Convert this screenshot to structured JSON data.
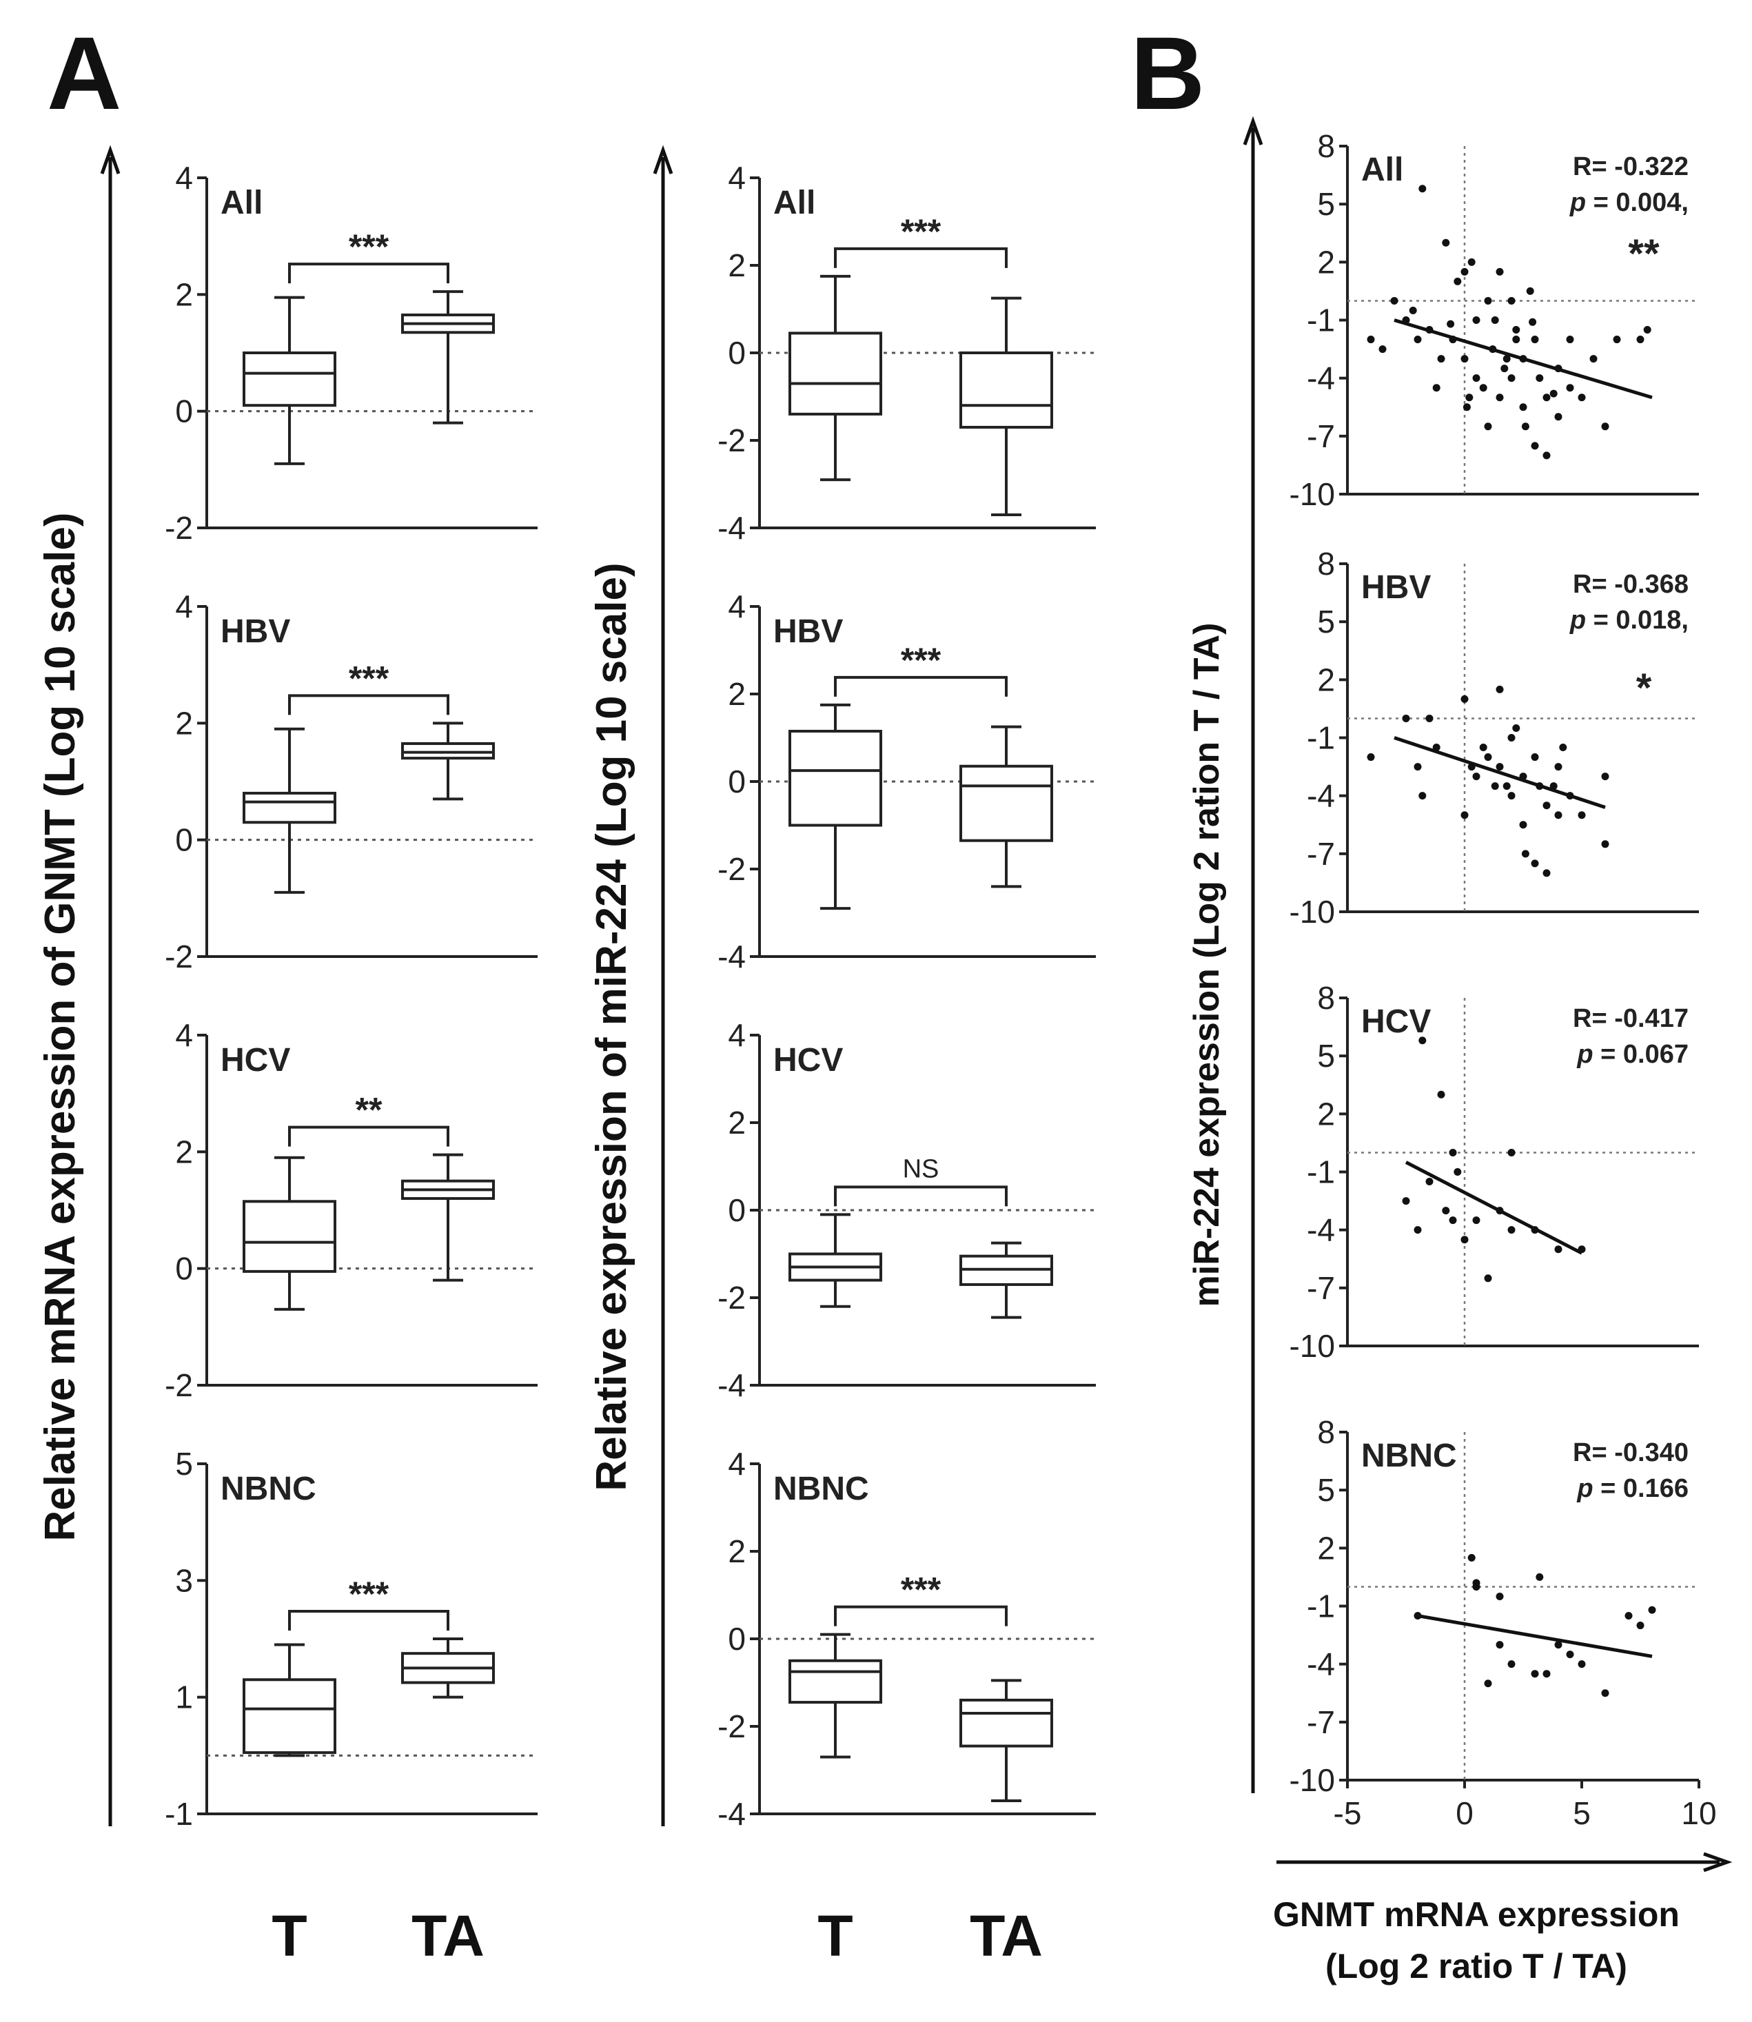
{
  "panel_a_label": "A",
  "panel_b_label": "B",
  "colors": {
    "ink": "#111111",
    "background": "#ffffff"
  },
  "chart_data": [
    {
      "id": "gnmt_box",
      "type": "box",
      "ylabel": "Relative  mRNA expression of GNMT (Log 10 scale)",
      "categories": [
        "T",
        "TA"
      ],
      "panels": [
        {
          "group": "All",
          "ylim": [
            -2,
            4
          ],
          "yticks": [
            -2,
            0,
            2,
            4
          ],
          "tick_labels": [
            "-2",
            "0",
            "2",
            "4"
          ],
          "boxes": [
            {
              "min": -0.9,
              "q1": 0.1,
              "median": 0.65,
              "q3": 1.0,
              "max": 1.95
            },
            {
              "min": -0.2,
              "q1": 1.35,
              "median": 1.5,
              "q3": 1.65,
              "max": 2.05
            }
          ],
          "significance": "***"
        },
        {
          "group": "HBV",
          "ylim": [
            -2,
            4
          ],
          "yticks": [
            -2,
            0,
            2,
            4
          ],
          "tick_labels": [
            "-2",
            "0",
            "2",
            "4"
          ],
          "boxes": [
            {
              "min": -0.9,
              "q1": 0.3,
              "median": 0.65,
              "q3": 0.8,
              "max": 1.9
            },
            {
              "min": 0.7,
              "q1": 1.4,
              "median": 1.5,
              "q3": 1.65,
              "max": 2.0
            }
          ],
          "significance": "***"
        },
        {
          "group": "HCV",
          "ylim": [
            -2,
            4
          ],
          "yticks": [
            -2,
            0,
            2,
            4
          ],
          "tick_labels": [
            "-2",
            "0",
            "2",
            "4"
          ],
          "boxes": [
            {
              "min": -0.7,
              "q1": -0.05,
              "median": 0.45,
              "q3": 1.15,
              "max": 1.9
            },
            {
              "min": -0.2,
              "q1": 1.2,
              "median": 1.35,
              "q3": 1.5,
              "max": 1.95
            }
          ],
          "significance": "**"
        },
        {
          "group": "NBNC",
          "ylim": [
            -1,
            5
          ],
          "yticks": [
            -1,
            1,
            3,
            5
          ],
          "tick_labels": [
            "-1",
            "1",
            "3",
            "5"
          ],
          "boxes": [
            {
              "min": 0.0,
              "q1": 0.05,
              "median": 0.8,
              "q3": 1.3,
              "max": 1.9
            },
            {
              "min": 1.0,
              "q1": 1.25,
              "median": 1.5,
              "q3": 1.75,
              "max": 2.0
            }
          ],
          "significance": "***"
        }
      ]
    },
    {
      "id": "mir224_box",
      "type": "box",
      "ylabel": "Relative expression of miR-224 (Log 10 scale)",
      "categories": [
        "T",
        "TA"
      ],
      "panels": [
        {
          "group": "All",
          "ylim": [
            -4,
            4
          ],
          "yticks": [
            -4,
            -2,
            0,
            2,
            4
          ],
          "tick_labels": [
            "-4",
            "-2",
            "0",
            "2",
            "4"
          ],
          "boxes": [
            {
              "min": -2.9,
              "q1": -1.4,
              "median": -0.7,
              "q3": 0.45,
              "max": 1.75
            },
            {
              "min": -3.7,
              "q1": -1.7,
              "median": -1.2,
              "q3": 0.0,
              "max": 1.25
            }
          ],
          "significance": "***"
        },
        {
          "group": "HBV",
          "ylim": [
            -4,
            4
          ],
          "yticks": [
            -4,
            -2,
            0,
            2,
            4
          ],
          "tick_labels": [
            "-4",
            "-2",
            "0",
            "2",
            "4"
          ],
          "boxes": [
            {
              "min": -2.9,
              "q1": -1.0,
              "median": 0.25,
              "q3": 1.15,
              "max": 1.75
            },
            {
              "min": -2.4,
              "q1": -1.35,
              "median": -0.1,
              "q3": 0.35,
              "max": 1.25
            }
          ],
          "significance": "***"
        },
        {
          "group": "HCV",
          "ylim": [
            -4,
            4
          ],
          "yticks": [
            -4,
            -2,
            0,
            2,
            4
          ],
          "tick_labels": [
            "-4",
            "-2",
            "0",
            "2",
            "4"
          ],
          "boxes": [
            {
              "min": -2.2,
              "q1": -1.6,
              "median": -1.3,
              "q3": -1.0,
              "max": -0.1
            },
            {
              "min": -2.45,
              "q1": -1.7,
              "median": -1.35,
              "q3": -1.05,
              "max": -0.75
            }
          ],
          "significance": "NS"
        },
        {
          "group": "NBNC",
          "ylim": [
            -4,
            4
          ],
          "yticks": [
            -4,
            -2,
            0,
            2,
            4
          ],
          "tick_labels": [
            "-4",
            "-2",
            "0",
            "2",
            "4"
          ],
          "boxes": [
            {
              "min": -2.7,
              "q1": -1.45,
              "median": -0.75,
              "q3": -0.5,
              "max": 0.1
            },
            {
              "min": -3.7,
              "q1": -2.45,
              "median": -1.7,
              "q3": -1.4,
              "max": -0.95
            }
          ],
          "significance": "***"
        }
      ]
    },
    {
      "id": "correlation_scatter",
      "type": "scatter",
      "xlabel": "GNMT mRNA expression",
      "xlabel_line2": "(Log 2 ratio T / TA)",
      "ylabel": "miR-224 expression (Log 2 ration T / TA)",
      "xlim": [
        -5,
        10
      ],
      "xticks": [
        -5,
        0,
        5,
        10
      ],
      "x_tick_labels": [
        "-5",
        "0",
        "5",
        "10"
      ],
      "ylim": [
        -10,
        8
      ],
      "yticks": [
        -10,
        -7,
        -4,
        -1,
        2,
        5,
        8
      ],
      "y_tick_labels": [
        "-10",
        "-7",
        "-4",
        "-1",
        "2",
        "5",
        "8"
      ],
      "panels": [
        {
          "group": "All",
          "R": "R= -0.322",
          "p_label": "p",
          "p_value": "=  0.004,",
          "stars": "**",
          "fit": [
            [
              -3,
              -1.0
            ],
            [
              8,
              -5.0
            ]
          ],
          "points": [
            [
              -4,
              -2
            ],
            [
              -3.5,
              -2.5
            ],
            [
              -3,
              0
            ],
            [
              -2.5,
              -1
            ],
            [
              -2,
              -2
            ],
            [
              -1.5,
              -1.5
            ],
            [
              -1.8,
              5.8
            ],
            [
              -1,
              -3
            ],
            [
              -0.8,
              3
            ],
            [
              -0.5,
              -2
            ],
            [
              -0.3,
              1
            ],
            [
              0,
              -3
            ],
            [
              0,
              1.5
            ],
            [
              0.2,
              -5
            ],
            [
              0.3,
              2
            ],
            [
              0.5,
              -4
            ],
            [
              0.5,
              -1
            ],
            [
              1,
              0
            ],
            [
              1,
              -6.5
            ],
            [
              1.2,
              -2.5
            ],
            [
              1.5,
              -5
            ],
            [
              1.5,
              1.5
            ],
            [
              1.8,
              -3
            ],
            [
              2,
              0
            ],
            [
              2,
              -4
            ],
            [
              2.2,
              -1.5
            ],
            [
              2.5,
              -3
            ],
            [
              2.5,
              -5.5
            ],
            [
              2.8,
              0.5
            ],
            [
              3,
              -2
            ],
            [
              3,
              -7.5
            ],
            [
              3.2,
              -4
            ],
            [
              3.5,
              -5
            ],
            [
              3.5,
              -8
            ],
            [
              4,
              -3.5
            ],
            [
              4,
              -6
            ],
            [
              4.5,
              -2
            ],
            [
              4.5,
              -4.5
            ],
            [
              5,
              -5
            ],
            [
              5.5,
              -3
            ],
            [
              6,
              -6.5
            ],
            [
              6.5,
              -2
            ],
            [
              7.5,
              -2
            ],
            [
              7.8,
              -1.5
            ],
            [
              -2.2,
              -0.5
            ],
            [
              1.3,
              -1
            ],
            [
              2.2,
              -2
            ],
            [
              -1.2,
              -4.5
            ],
            [
              0.8,
              -4.5
            ],
            [
              2.6,
              -6.5
            ],
            [
              1.7,
              -3.5
            ],
            [
              0.1,
              -5.5
            ],
            [
              3.8,
              -4.8
            ],
            [
              -0.6,
              -1.2
            ],
            [
              2.9,
              -1.1
            ]
          ]
        },
        {
          "group": "HBV",
          "R": "R= -0.368",
          "p_label": "p",
          "p_value": "=  0.018,",
          "stars": "*",
          "fit": [
            [
              -3,
              -1.0
            ],
            [
              6,
              -4.6
            ]
          ],
          "points": [
            [
              -4,
              -2
            ],
            [
              -2.5,
              0
            ],
            [
              -2,
              -2.5
            ],
            [
              -1.8,
              -4
            ],
            [
              -1.5,
              0
            ],
            [
              -1.2,
              -1.5
            ],
            [
              0,
              1
            ],
            [
              0,
              -5
            ],
            [
              0.5,
              -3
            ],
            [
              0.8,
              -1.5
            ],
            [
              1,
              -2
            ],
            [
              1.5,
              -2.5
            ],
            [
              1.5,
              1.5
            ],
            [
              1.8,
              -3.5
            ],
            [
              2,
              -1
            ],
            [
              2,
              -4
            ],
            [
              2.2,
              -0.5
            ],
            [
              2.5,
              -3
            ],
            [
              2.5,
              -5.5
            ],
            [
              2.6,
              -7
            ],
            [
              3,
              -2
            ],
            [
              3,
              -7.5
            ],
            [
              3.2,
              -3.5
            ],
            [
              3.5,
              -4.5
            ],
            [
              3.5,
              -8
            ],
            [
              4,
              -2.5
            ],
            [
              4,
              -5
            ],
            [
              4.2,
              -1.5
            ],
            [
              4.5,
              -4
            ],
            [
              5,
              -5
            ],
            [
              6,
              -3
            ],
            [
              6,
              -6.5
            ],
            [
              1.3,
              -3.5
            ],
            [
              0.3,
              -2.5
            ],
            [
              3.8,
              -3.5
            ]
          ]
        },
        {
          "group": "HCV",
          "R": "R= -0.417",
          "p_label": "p",
          "p_value": "=  0.067",
          "stars": "",
          "fit": [
            [
              -2.5,
              -0.5
            ],
            [
              5,
              -5.2
            ]
          ],
          "points": [
            [
              -2.5,
              -2.5
            ],
            [
              -2,
              -4
            ],
            [
              -1.8,
              5.8
            ],
            [
              -1.5,
              -1.5
            ],
            [
              -1,
              3
            ],
            [
              -0.8,
              -3
            ],
            [
              -0.5,
              0
            ],
            [
              -0.5,
              -3.5
            ],
            [
              -0.3,
              -1
            ],
            [
              0,
              -4.5
            ],
            [
              0.5,
              -3.5
            ],
            [
              1,
              -6.5
            ],
            [
              1.5,
              -3
            ],
            [
              2,
              -4
            ],
            [
              2,
              0
            ],
            [
              3,
              -4
            ],
            [
              4,
              -5
            ],
            [
              5,
              -5
            ]
          ]
        },
        {
          "group": "NBNC",
          "R": "R= -0.340",
          "p_label": "p",
          "p_value": "=  0.166",
          "stars": "",
          "fit": [
            [
              -2,
              -1.5
            ],
            [
              8,
              -3.6
            ]
          ],
          "points": [
            [
              -2,
              -1.5
            ],
            [
              0.3,
              1.5
            ],
            [
              0.5,
              0
            ],
            [
              0.5,
              0.2
            ],
            [
              1,
              -5
            ],
            [
              1.5,
              -3
            ],
            [
              1.5,
              -0.5
            ],
            [
              2,
              -4
            ],
            [
              3,
              -4.5
            ],
            [
              3.2,
              0.5
            ],
            [
              3.5,
              -4.5
            ],
            [
              4,
              -3
            ],
            [
              4.5,
              -3.5
            ],
            [
              5,
              -4
            ],
            [
              6,
              -5.5
            ],
            [
              7,
              -1.5
            ],
            [
              7.5,
              -2
            ],
            [
              8,
              -1.2
            ]
          ]
        }
      ]
    }
  ]
}
